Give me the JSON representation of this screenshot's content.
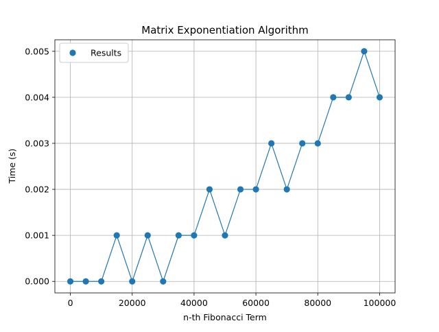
{
  "chart_data": {
    "type": "scatter",
    "title": "Matrix Exponentiation Algorithm",
    "xlabel": "n-th Fibonacci Term",
    "ylabel": "Time (s)",
    "xlim": [
      -5000,
      105000
    ],
    "ylim": [
      -0.00025,
      0.00525
    ],
    "xticks": [
      0,
      20000,
      40000,
      60000,
      80000,
      100000
    ],
    "xtick_labels": [
      "0",
      "20000",
      "40000",
      "60000",
      "80000",
      "100000"
    ],
    "yticks": [
      0.0,
      0.001,
      0.002,
      0.003,
      0.004,
      0.005
    ],
    "ytick_labels": [
      "0.000",
      "0.001",
      "0.002",
      "0.003",
      "0.004",
      "0.005"
    ],
    "grid": true,
    "legend_position": "upper-left",
    "series": [
      {
        "name": "Results",
        "color": "#1f77b4",
        "connected_line": true,
        "x": [
          0,
          5000,
          10000,
          15000,
          20000,
          25000,
          30000,
          35000,
          40000,
          45000,
          50000,
          55000,
          60000,
          65000,
          70000,
          75000,
          80000,
          85000,
          90000,
          95000,
          100000
        ],
        "y": [
          0.0,
          0.0,
          0.0,
          0.001,
          0.0,
          0.001,
          0.0,
          0.001,
          0.001,
          0.002,
          0.001,
          0.002,
          0.002,
          0.003,
          0.002,
          0.003,
          0.003,
          0.004,
          0.004,
          0.005,
          0.004
        ]
      }
    ]
  }
}
